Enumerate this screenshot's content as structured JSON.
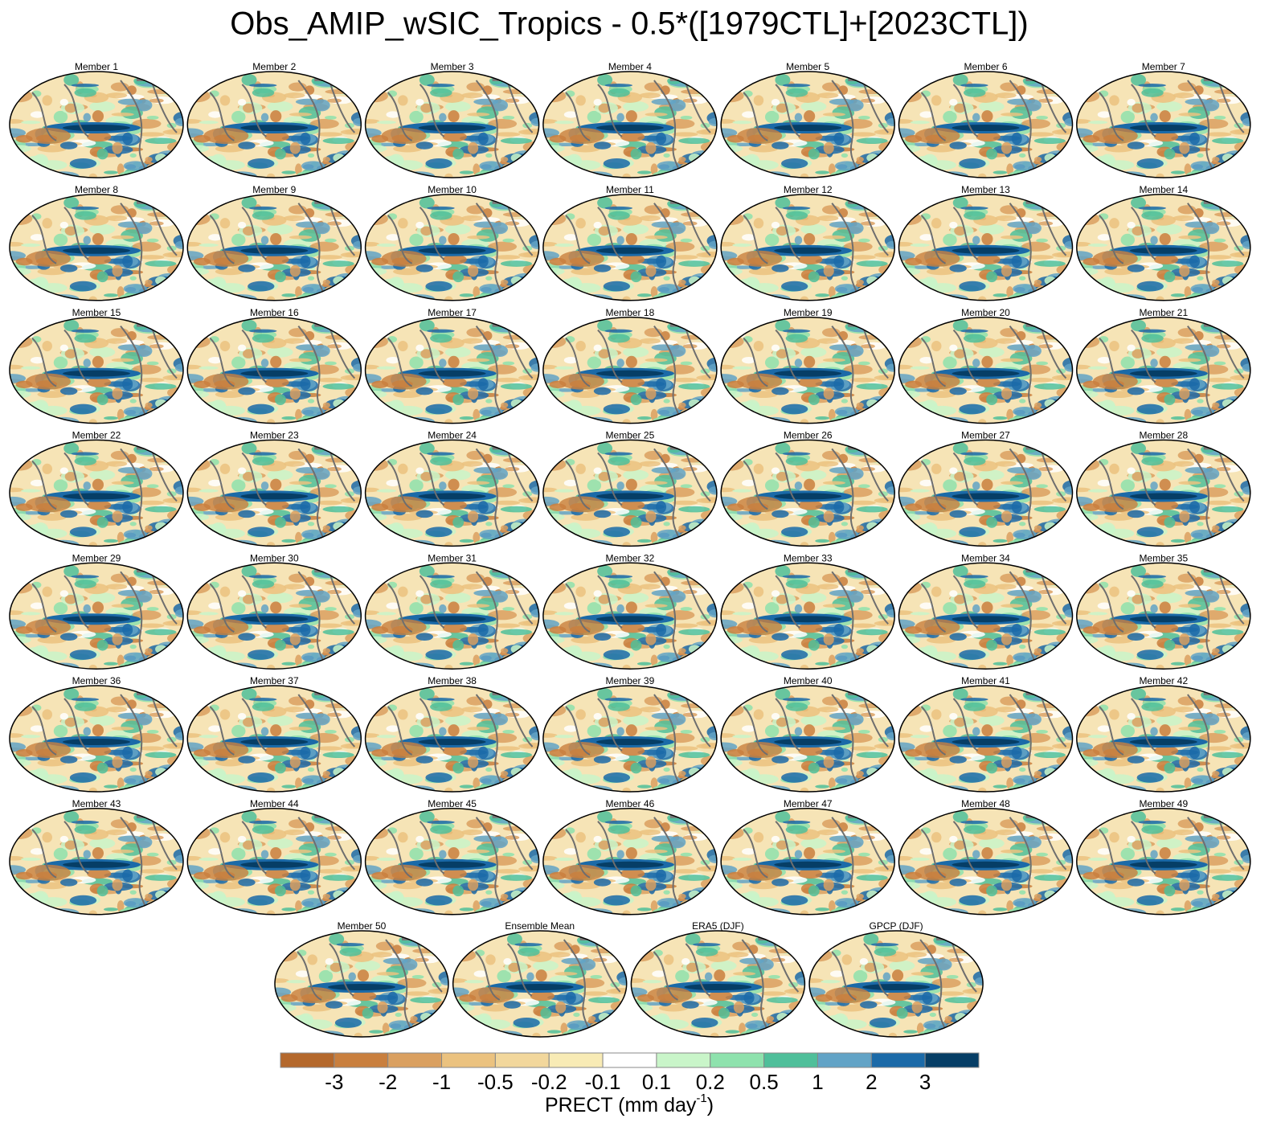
{
  "title": "Obs_AMIP_wSIC_Tropics - 0.5*([1979CTL]+[2023CTL])",
  "panels": [
    "Member 1",
    "Member 2",
    "Member 3",
    "Member 4",
    "Member 5",
    "Member 6",
    "Member 7",
    "Member 8",
    "Member 9",
    "Member 10",
    "Member 11",
    "Member 12",
    "Member 13",
    "Member 14",
    "Member 15",
    "Member 16",
    "Member 17",
    "Member 18",
    "Member 19",
    "Member 20",
    "Member 21",
    "Member 22",
    "Member 23",
    "Member 24",
    "Member 25",
    "Member 26",
    "Member 27",
    "Member 28",
    "Member 29",
    "Member 30",
    "Member 31",
    "Member 32",
    "Member 33",
    "Member 34",
    "Member 35",
    "Member 36",
    "Member 37",
    "Member 38",
    "Member 39",
    "Member 40",
    "Member 41",
    "Member 42",
    "Member 43",
    "Member 44",
    "Member 45",
    "Member 46",
    "Member 47",
    "Member 48",
    "Member 49",
    "Member 50",
    "Ensemble Mean",
    "ERA5 (DJF)",
    "GPCP (DJF)"
  ],
  "colorbar": {
    "colors": [
      "#b4682c",
      "#c97f3e",
      "#daa060",
      "#ebc27f",
      "#f2d79c",
      "#f8ebb5",
      "#ffffff",
      "#c9f5c9",
      "#8ee2ad",
      "#4fbf9a",
      "#62a3c6",
      "#1b6aa8",
      "#063e66"
    ],
    "ticks": [
      -3,
      -2,
      -1,
      -0.5,
      -0.2,
      -0.1,
      0.1,
      0.2,
      0.5,
      1,
      2,
      3
    ],
    "label": [
      "PRECT (mm day",
      "-1",
      ")"
    ]
  }
}
